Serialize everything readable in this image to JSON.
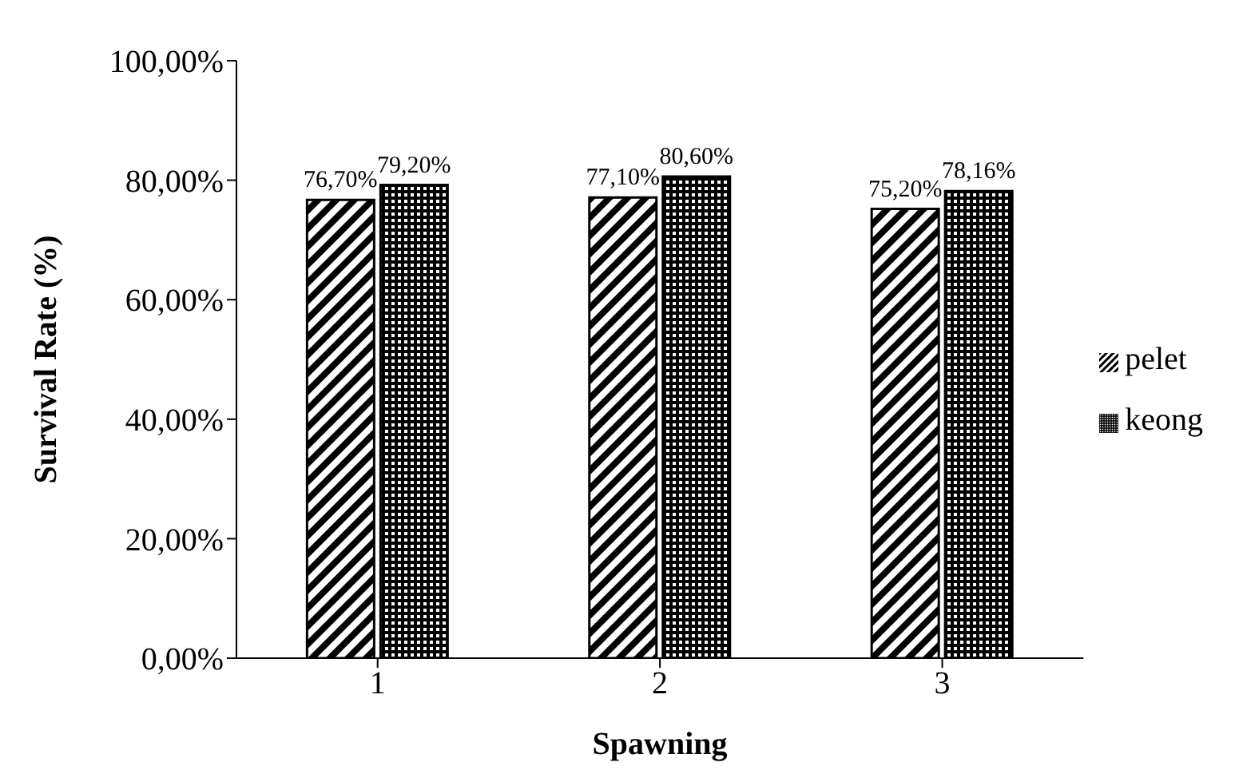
{
  "chart_data": {
    "type": "bar",
    "xlabel": "Spawning",
    "ylabel": "Survival Rate (%)",
    "categories": [
      "1",
      "2",
      "3"
    ],
    "series": [
      {
        "name": "pelet",
        "color": "#000000",
        "values": [
          76.7,
          77.1,
          75.2
        ],
        "value_labels": [
          "76,70%",
          "77,10%",
          "75,20%"
        ]
      },
      {
        "name": "keong",
        "color": "#000000",
        "values": [
          79.2,
          80.6,
          78.16
        ],
        "value_labels": [
          "79,20%",
          "80,60%",
          "78,16%"
        ]
      }
    ],
    "ylim": [
      0,
      100
    ],
    "yticks": [
      {
        "value": 0,
        "label": "0,00%"
      },
      {
        "value": 20,
        "label": "20,00%"
      },
      {
        "value": 40,
        "label": "40,00%"
      },
      {
        "value": 60,
        "label": "60,00%"
      },
      {
        "value": 80,
        "label": "80,00%"
      },
      {
        "value": 100,
        "label": "100,00%"
      }
    ],
    "grid": false,
    "legend": "right"
  }
}
